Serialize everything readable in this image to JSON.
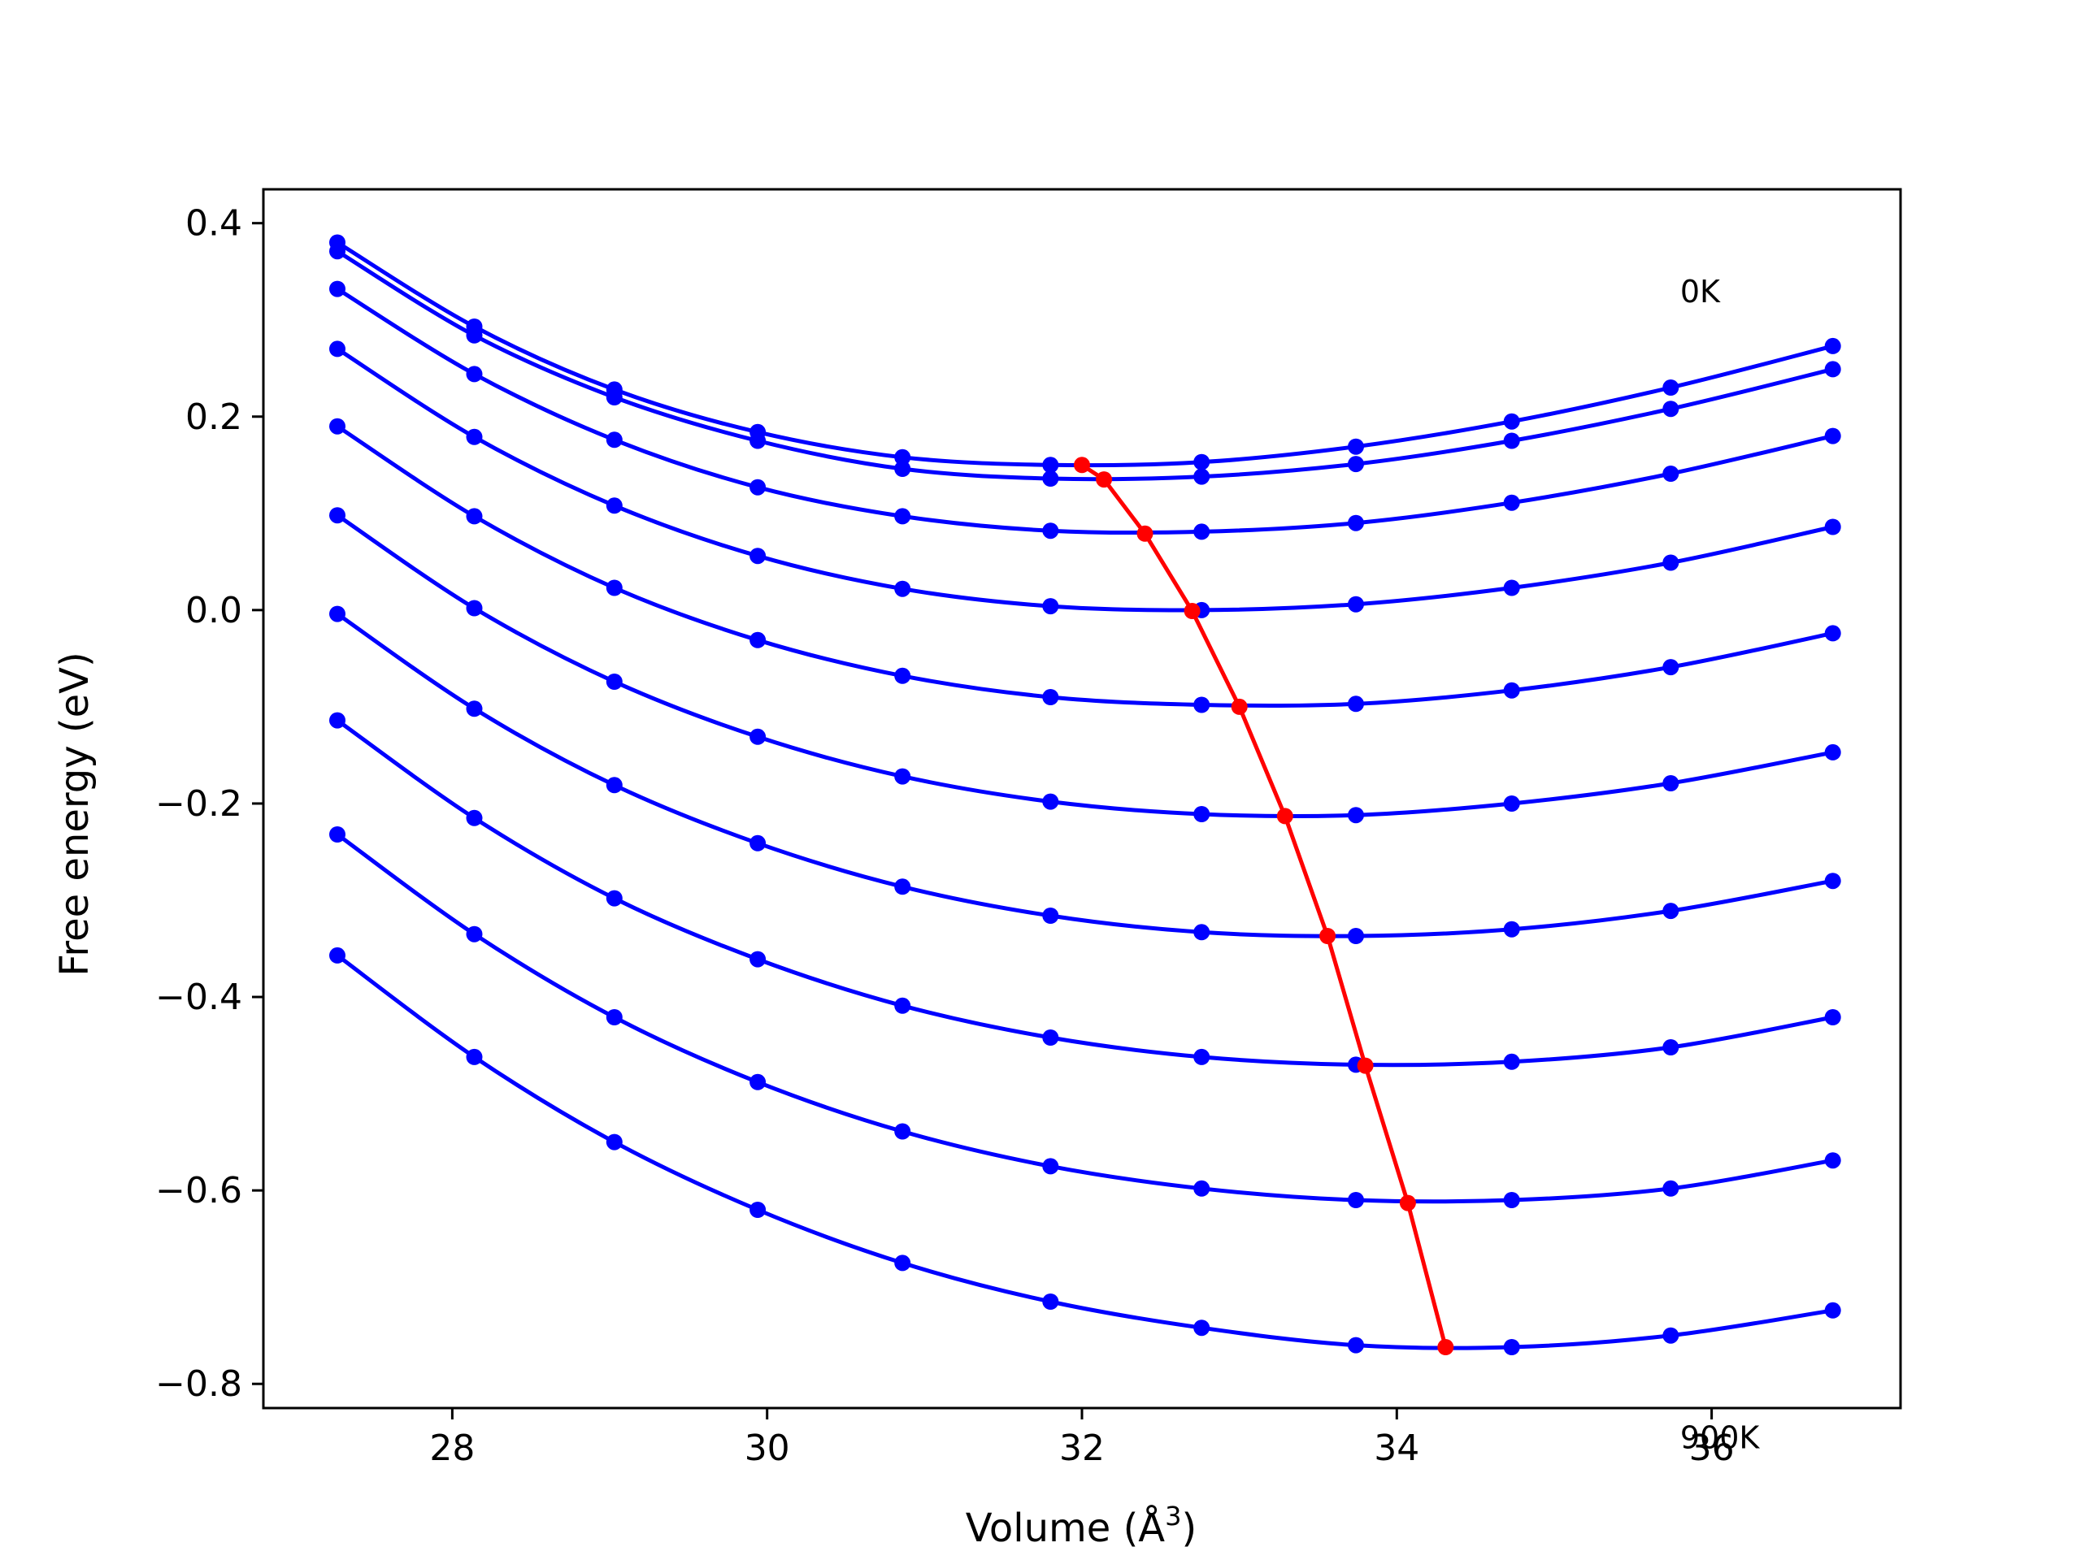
{
  "chart_data": {
    "type": "line",
    "title": "",
    "xlabel": "Volume (Å",
    "xlabel_sup": "3",
    "xlabel_close": ")",
    "ylabel": "Free energy (eV)",
    "xlim": [
      26.8,
      37.2
    ],
    "ylim": [
      -0.825,
      0.435
    ],
    "xticks": [
      28,
      30,
      32,
      34,
      36
    ],
    "xtick_labels": [
      "28",
      "30",
      "32",
      "34",
      "36"
    ],
    "yticks": [
      0.4,
      0.2,
      0.0,
      -0.2,
      -0.4,
      -0.6,
      -0.8
    ],
    "ytick_labels": [
      "0.4",
      "0.2",
      "0.0",
      "−0.2",
      "−0.4",
      "−0.6",
      "−0.8"
    ],
    "grid": false,
    "legend": "none",
    "colors": {
      "curves": "#0000ff",
      "minima": "#ff0000"
    },
    "annotations": [
      {
        "text": "0K",
        "x": 35.8,
        "y": 0.33
      },
      {
        "text": "900K",
        "x": 35.8,
        "y": -0.855
      }
    ],
    "x": [
      27.27,
      28.14,
      29.03,
      29.94,
      30.86,
      31.8,
      32.76,
      33.74,
      34.73,
      35.74,
      36.77
    ],
    "series": [
      {
        "values": [
          0.38,
          0.293,
          0.228,
          0.184,
          0.158,
          0.15,
          0.153,
          0.169,
          0.195,
          0.23,
          0.273
        ]
      },
      {
        "values": [
          0.371,
          0.284,
          0.22,
          0.175,
          0.146,
          0.136,
          0.138,
          0.151,
          0.175,
          0.208,
          0.249
        ]
      },
      {
        "values": [
          0.332,
          0.244,
          0.176,
          0.127,
          0.097,
          0.082,
          0.081,
          0.09,
          0.111,
          0.141,
          0.18
        ]
      },
      {
        "values": [
          0.27,
          0.179,
          0.108,
          0.056,
          0.022,
          0.004,
          0.0,
          0.006,
          0.023,
          0.049,
          0.086
        ]
      },
      {
        "values": [
          0.19,
          0.097,
          0.023,
          -0.031,
          -0.068,
          -0.09,
          -0.098,
          -0.097,
          -0.083,
          -0.059,
          -0.024
        ]
      },
      {
        "values": [
          0.098,
          0.002,
          -0.074,
          -0.131,
          -0.172,
          -0.198,
          -0.211,
          -0.212,
          -0.2,
          -0.179,
          -0.147
        ]
      },
      {
        "values": [
          -0.004,
          -0.102,
          -0.181,
          -0.241,
          -0.286,
          -0.316,
          -0.333,
          -0.337,
          -0.33,
          -0.311,
          -0.28
        ]
      },
      {
        "values": [
          -0.114,
          -0.215,
          -0.298,
          -0.361,
          -0.409,
          -0.442,
          -0.462,
          -0.47,
          -0.467,
          -0.452,
          -0.421
        ]
      },
      {
        "values": [
          -0.232,
          -0.335,
          -0.421,
          -0.488,
          -0.539,
          -0.575,
          -0.598,
          -0.61,
          -0.61,
          -0.598,
          -0.569
        ]
      },
      {
        "values": [
          -0.357,
          -0.462,
          -0.55,
          -0.62,
          -0.675,
          -0.715,
          -0.742,
          -0.76,
          -0.762,
          -0.75,
          -0.724
        ]
      }
    ],
    "minima": {
      "x": [
        32.0,
        32.14,
        32.4,
        32.7,
        33.0,
        33.29,
        33.56,
        33.8,
        34.07,
        34.31
      ],
      "y": [
        0.15,
        0.135,
        0.079,
        -0.001,
        -0.1,
        -0.213,
        -0.337,
        -0.471,
        -0.613,
        -0.762
      ]
    }
  }
}
